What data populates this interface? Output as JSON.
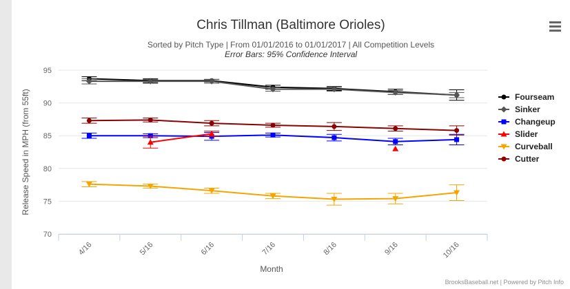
{
  "chart_data": {
    "type": "line",
    "title": "Chris Tillman (Baltimore Orioles)",
    "subtitle": "Sorted by Pitch Type | From 01/01/2016 to 01/01/2017 | All Competition Levels",
    "subtitle2": "Error Bars: 95% Confidence Interval",
    "xlabel": "Month",
    "ylabel": "Release Speed in MPH (from 55ft)",
    "categories": [
      "4/16",
      "5/16",
      "6/16",
      "7/16",
      "8/16",
      "9/16",
      "10/16"
    ],
    "ylim": [
      70,
      95
    ],
    "yticks": [
      70,
      75,
      80,
      85,
      90,
      95
    ],
    "grid": true,
    "legend_position": "right",
    "credits": "BrooksBaseball.net | Powered by Pitch Info",
    "series": [
      {
        "name": "Fourseam",
        "color": "#000000",
        "marker": "circle",
        "values": [
          93.7,
          93.4,
          93.4,
          92.4,
          92.2,
          91.7,
          91.2
        ],
        "errors": [
          0.3,
          0.3,
          0.2,
          0.3,
          0.3,
          0.4,
          0.8
        ]
      },
      {
        "name": "Sinker",
        "color": "#555555",
        "marker": "diamond",
        "values": [
          93.3,
          93.3,
          93.3,
          92.1,
          92.1,
          91.6,
          91.2
        ],
        "errors": [
          0.4,
          0.3,
          0.3,
          0.3,
          0.3,
          0.3,
          0.4
        ]
      },
      {
        "name": "Changeup",
        "color": "#0000ff",
        "marker": "square",
        "values": [
          85.0,
          85.0,
          84.9,
          85.1,
          84.7,
          84.1,
          84.4
        ],
        "errors": [
          0.4,
          0.3,
          0.6,
          0.3,
          0.5,
          0.5,
          0.8
        ]
      },
      {
        "name": "Slider",
        "color": "#ff0000",
        "marker": "triangle",
        "values": [
          null,
          84.0,
          85.3,
          null,
          null,
          83.0,
          null
        ],
        "errors": [
          null,
          0.9,
          0.4,
          null,
          null,
          0,
          null
        ]
      },
      {
        "name": "Curveball",
        "color": "#f5a400",
        "marker": "triangle-down",
        "values": [
          77.6,
          77.3,
          76.6,
          75.8,
          75.3,
          75.4,
          76.3
        ],
        "errors": [
          0.4,
          0.3,
          0.4,
          0.4,
          0.9,
          0.8,
          1.2
        ]
      },
      {
        "name": "Cutter",
        "color": "#8b0000",
        "marker": "circle",
        "values": [
          87.3,
          87.4,
          86.9,
          86.6,
          86.4,
          86.1,
          85.8
        ],
        "errors": [
          0.4,
          0.3,
          0.4,
          0.3,
          0.6,
          0.4,
          0.7
        ]
      }
    ]
  }
}
